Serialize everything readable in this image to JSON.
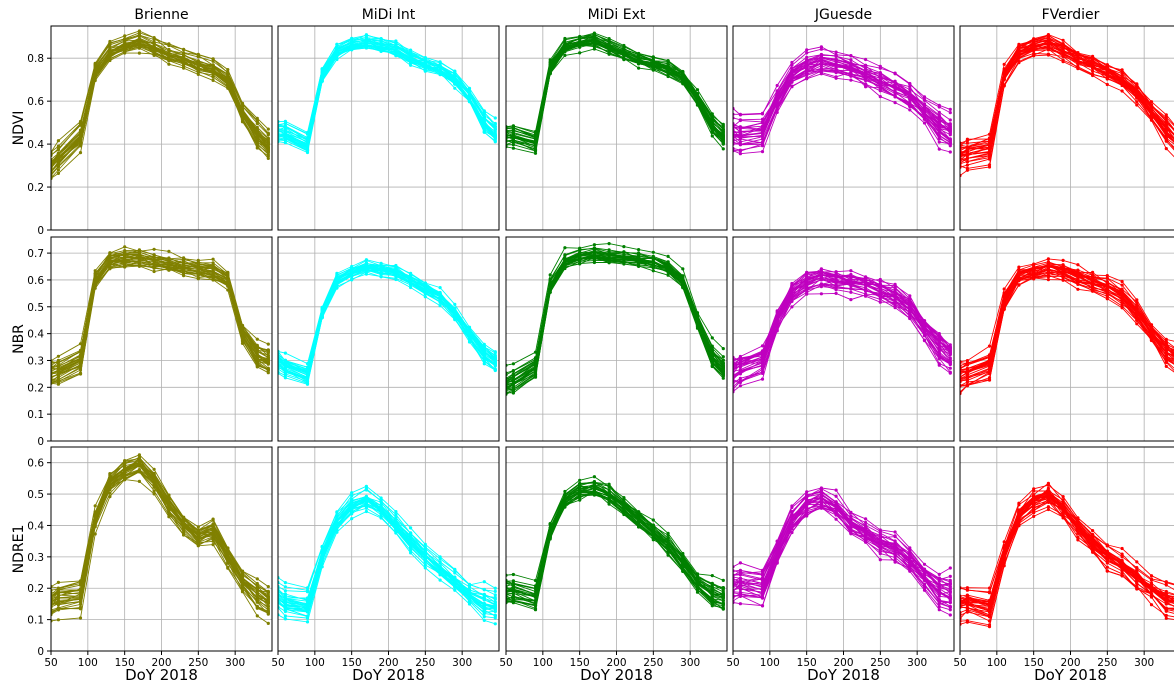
{
  "chart_data": {
    "type": "line",
    "columns": [
      "Brienne",
      "MiDi Int",
      "MiDi Ext",
      "JGuesde",
      "FVerdier"
    ],
    "rows": [
      {
        "ylabel": "NDVI",
        "ylim": [
          0,
          0.95
        ],
        "yticks": [
          "0",
          "0.2",
          "0.4",
          "0.6",
          "0.8"
        ]
      },
      {
        "ylabel": "NBR",
        "ylim": [
          0,
          0.76
        ],
        "yticks": [
          "0",
          "0.1",
          "0.2",
          "0.3",
          "0.4",
          "0.5",
          "0.6",
          "0.7"
        ]
      },
      {
        "ylabel": "NDRE1",
        "ylim": [
          0,
          0.65
        ],
        "yticks": [
          "0",
          "0.1",
          "0.2",
          "0.3",
          "0.4",
          "0.5",
          "0.6"
        ]
      }
    ],
    "xlabel": "DoY 2018",
    "xlim": [
      50,
      350
    ],
    "xticks": [
      "50",
      "100",
      "150",
      "200",
      "250",
      "300"
    ],
    "grid": true,
    "colors": [
      "#808000",
      "#00ffff",
      "#008000",
      "#bf00bf",
      "#ff0000"
    ],
    "x": [
      50,
      60,
      90,
      110,
      130,
      150,
      170,
      190,
      210,
      230,
      250,
      270,
      290,
      310,
      330,
      345
    ],
    "mean_profiles": [
      [
        [
          0.3,
          0.34,
          0.44,
          0.74,
          0.83,
          0.86,
          0.88,
          0.85,
          0.82,
          0.8,
          0.77,
          0.75,
          0.7,
          0.55,
          0.45,
          0.4
        ],
        [
          0.25,
          0.26,
          0.3,
          0.6,
          0.67,
          0.68,
          0.68,
          0.67,
          0.66,
          0.65,
          0.64,
          0.63,
          0.6,
          0.4,
          0.32,
          0.3
        ],
        [
          0.15,
          0.16,
          0.17,
          0.42,
          0.53,
          0.57,
          0.59,
          0.54,
          0.46,
          0.4,
          0.36,
          0.38,
          0.3,
          0.22,
          0.17,
          0.15
        ]
      ],
      [
        [
          0.45,
          0.45,
          0.4,
          0.72,
          0.83,
          0.86,
          0.87,
          0.86,
          0.84,
          0.8,
          0.77,
          0.75,
          0.7,
          0.62,
          0.5,
          0.45
        ],
        [
          0.3,
          0.28,
          0.25,
          0.48,
          0.6,
          0.63,
          0.65,
          0.64,
          0.63,
          0.6,
          0.57,
          0.54,
          0.48,
          0.4,
          0.33,
          0.3
        ],
        [
          0.17,
          0.15,
          0.14,
          0.3,
          0.41,
          0.46,
          0.48,
          0.45,
          0.4,
          0.35,
          0.3,
          0.26,
          0.22,
          0.18,
          0.15,
          0.14
        ]
      ],
      [
        [
          0.45,
          0.45,
          0.42,
          0.76,
          0.86,
          0.88,
          0.89,
          0.86,
          0.83,
          0.8,
          0.78,
          0.76,
          0.72,
          0.62,
          0.5,
          0.45
        ],
        [
          0.22,
          0.23,
          0.28,
          0.58,
          0.67,
          0.69,
          0.7,
          0.69,
          0.69,
          0.68,
          0.67,
          0.65,
          0.6,
          0.45,
          0.32,
          0.28
        ],
        [
          0.19,
          0.19,
          0.17,
          0.38,
          0.48,
          0.51,
          0.52,
          0.5,
          0.46,
          0.42,
          0.38,
          0.34,
          0.28,
          0.22,
          0.18,
          0.17
        ]
      ],
      [
        [
          0.45,
          0.44,
          0.45,
          0.6,
          0.72,
          0.76,
          0.78,
          0.77,
          0.75,
          0.72,
          0.69,
          0.66,
          0.62,
          0.55,
          0.48,
          0.45
        ],
        [
          0.26,
          0.27,
          0.3,
          0.45,
          0.55,
          0.59,
          0.61,
          0.6,
          0.59,
          0.58,
          0.56,
          0.54,
          0.5,
          0.42,
          0.35,
          0.32
        ],
        [
          0.22,
          0.22,
          0.21,
          0.32,
          0.42,
          0.47,
          0.49,
          0.46,
          0.41,
          0.38,
          0.35,
          0.33,
          0.29,
          0.24,
          0.2,
          0.19
        ]
      ],
      [
        [
          0.35,
          0.36,
          0.38,
          0.72,
          0.83,
          0.86,
          0.87,
          0.84,
          0.8,
          0.77,
          0.74,
          0.7,
          0.64,
          0.55,
          0.47,
          0.42
        ],
        [
          0.24,
          0.25,
          0.28,
          0.52,
          0.61,
          0.63,
          0.64,
          0.63,
          0.61,
          0.59,
          0.57,
          0.54,
          0.48,
          0.4,
          0.33,
          0.3
        ],
        [
          0.16,
          0.16,
          0.15,
          0.32,
          0.44,
          0.48,
          0.5,
          0.46,
          0.4,
          0.35,
          0.31,
          0.28,
          0.24,
          0.2,
          0.17,
          0.16
        ]
      ]
    ],
    "curve_spread": [
      0.06,
      0.05,
      0.05,
      0.08,
      0.07
    ]
  }
}
